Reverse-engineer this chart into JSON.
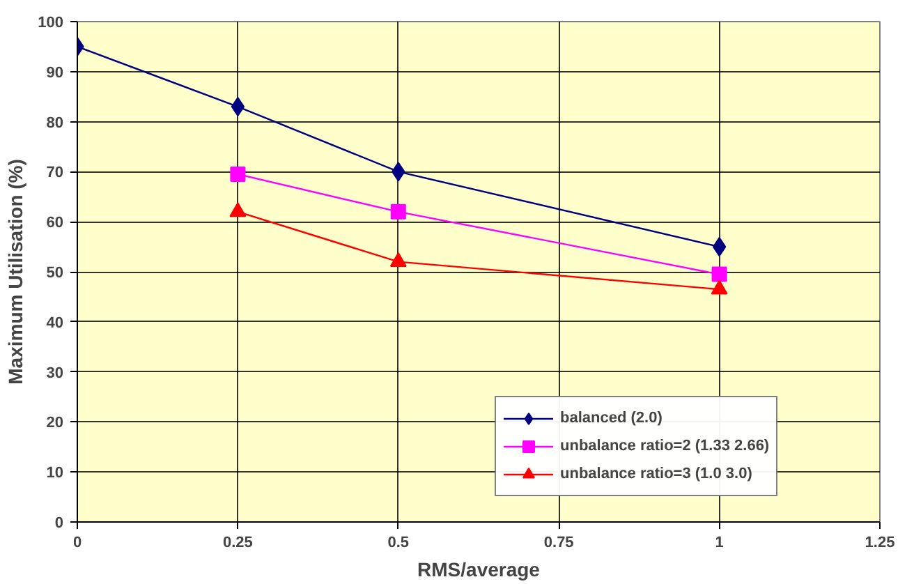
{
  "chart_data": {
    "type": "line",
    "xlabel": "RMS/average",
    "ylabel": "Maximum Utilisation (%)",
    "xlim": [
      0,
      1.25
    ],
    "xticks": [
      0,
      0.25,
      0.5,
      0.75,
      1,
      1.25
    ],
    "ylim": [
      0,
      100
    ],
    "yticks": [
      0,
      10,
      20,
      30,
      40,
      50,
      60,
      70,
      80,
      90,
      100
    ],
    "grid": true,
    "legend": "bottom right",
    "line_style": "solid",
    "series": [
      {
        "name": "balanced (2.0)",
        "color": "#000080",
        "marker": "diamond",
        "x": [
          0,
          0.25,
          0.5,
          1
        ],
        "values": [
          95,
          83,
          70,
          55
        ]
      },
      {
        "name": "unbalance ratio=2 (1.33 2.66)",
        "color": "#ff00ff",
        "marker": "square",
        "x": [
          0.25,
          0.5,
          1
        ],
        "values": [
          69.5,
          62,
          49.5
        ]
      },
      {
        "name": "unbalance ratio=3 (1.0 3.0)",
        "color": "#ff0000",
        "marker": "triangle",
        "x": [
          0.25,
          0.5,
          1
        ],
        "values": [
          62,
          52,
          46.5
        ]
      }
    ]
  }
}
